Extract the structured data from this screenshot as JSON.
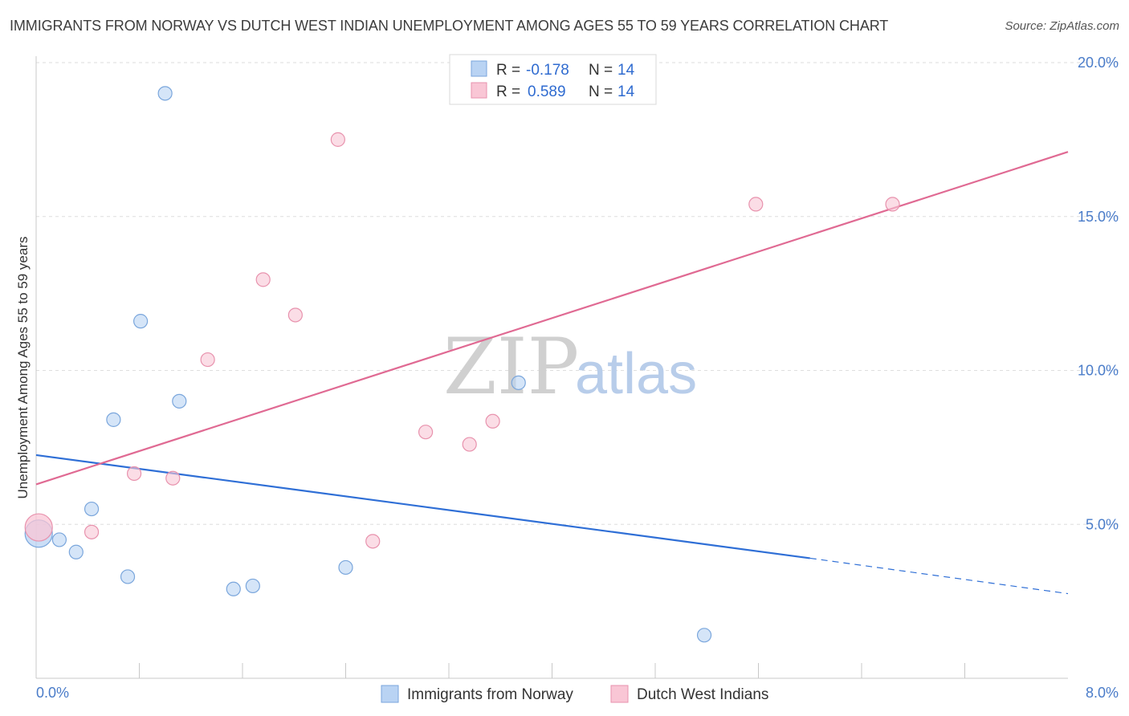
{
  "header": {
    "title": "IMMIGRANTS FROM NORWAY VS DUTCH WEST INDIAN UNEMPLOYMENT AMONG AGES 55 TO 59 YEARS CORRELATION CHART",
    "source": "Source: ZipAtlas.com"
  },
  "watermark": {
    "zip": "ZIP",
    "atlas": "atlas"
  },
  "legend": {
    "rows": [
      {
        "r_label": "R = ",
        "r_value": "-0.178",
        "n_label": "N = ",
        "n_value": "14"
      },
      {
        "r_label": "R = ",
        "r_value": "0.589",
        "n_label": "N = ",
        "n_value": "14"
      }
    ]
  },
  "chart_data": {
    "type": "scatter",
    "title": "IMMIGRANTS FROM NORWAY VS DUTCH WEST INDIAN UNEMPLOYMENT AMONG AGES 55 TO 59 YEARS CORRELATION CHART",
    "ylabel": "Unemployment Among Ages 55 to 59 years",
    "xlabel": "",
    "xlim": [
      0,
      8
    ],
    "ylim": [
      0,
      20
    ],
    "x_tick_labels": [
      "0.0%",
      "8.0%"
    ],
    "y_ticks": [
      5,
      10,
      15,
      20
    ],
    "y_tick_labels": [
      "5.0%",
      "10.0%",
      "15.0%",
      "20.0%"
    ],
    "grid": true,
    "legend_position": "top-center",
    "colors": {
      "norway_fill": "#b9d3f3",
      "norway_stroke": "#7aa6dc",
      "norway_line": "#2f6fd6",
      "dutch_fill": "#f9c6d5",
      "dutch_stroke": "#e892ad",
      "dutch_line": "#e06a93"
    },
    "series": [
      {
        "name": "Immigrants from Norway",
        "r": -0.178,
        "n": 14,
        "points": [
          {
            "x": 0.02,
            "y": 4.7,
            "big": true
          },
          {
            "x": 0.18,
            "y": 4.5
          },
          {
            "x": 0.31,
            "y": 4.1
          },
          {
            "x": 0.43,
            "y": 5.5
          },
          {
            "x": 0.6,
            "y": 8.4
          },
          {
            "x": 0.71,
            "y": 3.3
          },
          {
            "x": 0.81,
            "y": 11.6
          },
          {
            "x": 1.0,
            "y": 19.0
          },
          {
            "x": 1.11,
            "y": 9.0
          },
          {
            "x": 1.53,
            "y": 2.9
          },
          {
            "x": 1.68,
            "y": 3.0
          },
          {
            "x": 2.4,
            "y": 3.6
          },
          {
            "x": 3.74,
            "y": 9.6
          },
          {
            "x": 5.18,
            "y": 1.4
          }
        ],
        "trend": {
          "x0": 0.0,
          "y0": 7.25,
          "x1": 6.0,
          "y1": 3.9,
          "dash_to_x": 8.0,
          "dash_to_y": 2.75
        }
      },
      {
        "name": "Dutch West Indians",
        "r": 0.589,
        "n": 14,
        "points": [
          {
            "x": 0.02,
            "y": 4.9,
            "big": true
          },
          {
            "x": 0.43,
            "y": 4.75
          },
          {
            "x": 0.76,
            "y": 6.65
          },
          {
            "x": 1.06,
            "y": 6.5
          },
          {
            "x": 1.33,
            "y": 10.35
          },
          {
            "x": 1.76,
            "y": 12.95
          },
          {
            "x": 2.01,
            "y": 11.8
          },
          {
            "x": 2.34,
            "y": 17.5
          },
          {
            "x": 2.61,
            "y": 4.45
          },
          {
            "x": 3.02,
            "y": 8.0
          },
          {
            "x": 3.36,
            "y": 7.6
          },
          {
            "x": 3.54,
            "y": 8.35
          },
          {
            "x": 5.58,
            "y": 15.4
          },
          {
            "x": 6.64,
            "y": 15.4
          }
        ],
        "trend": {
          "x0": 0.0,
          "y0": 6.3,
          "x1": 8.0,
          "y1": 17.1
        }
      }
    ]
  }
}
